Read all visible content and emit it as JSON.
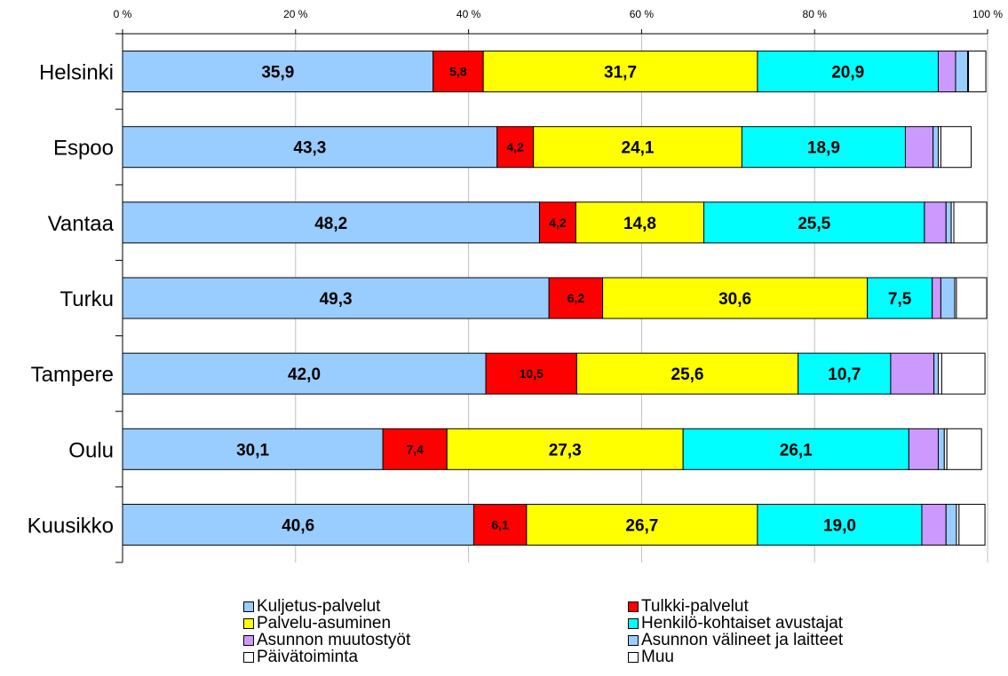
{
  "chart_data": {
    "type": "bar",
    "orientation": "horizontal",
    "stacked": "percent",
    "categories": [
      "Helsinki",
      "Espoo",
      "Vantaa",
      "Turku",
      "Tampere",
      "Oulu",
      "Kuusikko"
    ],
    "x_ticks": [
      "0 %",
      "20 %",
      "40 %",
      "60 %",
      "80 %",
      "100 %"
    ],
    "xlim": [
      0,
      100
    ],
    "grid": "vertical",
    "legend_position": "bottom",
    "series": [
      {
        "name": "Kuljetus-palvelut",
        "color": "#99CCFF",
        "values": [
          35.9,
          43.3,
          48.2,
          49.3,
          42.0,
          30.1,
          40.6
        ],
        "labels": [
          "35,9",
          "43,3",
          "48,2",
          "49,3",
          "42,0",
          "30,1",
          "40,6"
        ]
      },
      {
        "name": "Tulkki-palvelut",
        "color": "#FF0000",
        "values": [
          5.8,
          4.2,
          4.2,
          6.2,
          10.5,
          7.4,
          6.1
        ],
        "labels": [
          "5,8",
          "4,2",
          "4,2",
          "6,2",
          "10,5",
          "7,4",
          "6,1"
        ]
      },
      {
        "name": "Palvelu-asuminen",
        "color": "#FFFF00",
        "values": [
          31.7,
          24.1,
          14.8,
          30.6,
          25.6,
          27.3,
          26.7
        ],
        "labels": [
          "31,7",
          "24,1",
          "14,8",
          "30,6",
          "25,6",
          "27,3",
          "26,7"
        ]
      },
      {
        "name": "Henkilö-kohtaiset avustajat",
        "color": "#00FFFF",
        "values": [
          20.9,
          18.9,
          25.5,
          7.5,
          10.7,
          26.1,
          19.0
        ],
        "labels": [
          "20,9",
          "18,9",
          "25,5",
          "7,5",
          "10,7",
          "26,1",
          "19,0"
        ]
      },
      {
        "name": "Asunnon muutostyöt",
        "color": "#CC99FF",
        "values": [
          2.0,
          3.2,
          2.5,
          1.0,
          5.0,
          3.4,
          2.8
        ]
      },
      {
        "name": "Asunnon välineet ja laitteet",
        "color": "#99CCFF",
        "values": [
          1.4,
          0.6,
          0.6,
          1.6,
          0.5,
          0.7,
          1.2
        ]
      },
      {
        "name": "Päivätoiminta",
        "color": "#FFFFFF",
        "values": [
          0.1,
          0.3,
          0.3,
          0.2,
          0.4,
          0.3,
          0.3
        ]
      },
      {
        "name": "Muu",
        "color": "#FFFFFF",
        "values": [
          2.0,
          3.5,
          3.8,
          3.5,
          5.0,
          4.0,
          3.0
        ]
      }
    ]
  }
}
